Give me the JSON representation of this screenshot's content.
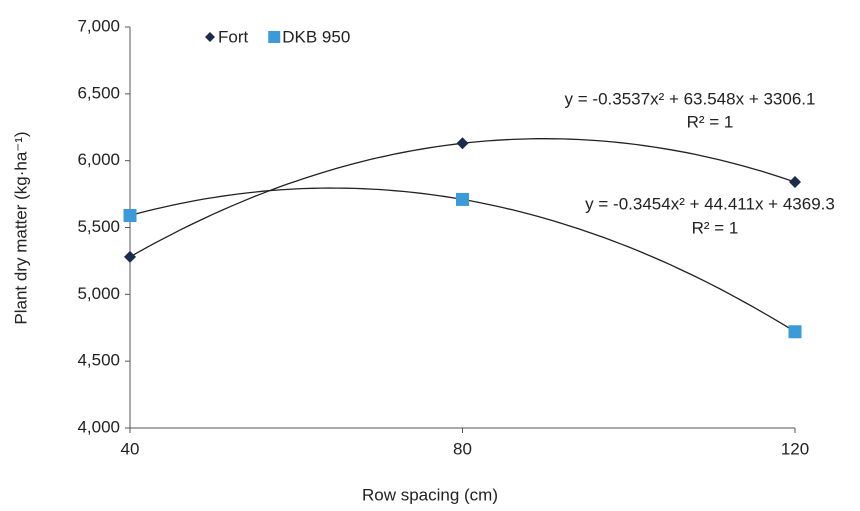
{
  "chart_data": {
    "type": "scatter",
    "x_label": "Row spacing (cm)",
    "y_label": "Plant dry matter (kg·ha⁻¹)",
    "x": [
      40,
      80,
      120
    ],
    "series": [
      {
        "name": "Fort",
        "color": "#1b2b4b",
        "marker": "diamond",
        "values": [
          5280,
          6130,
          5840
        ]
      },
      {
        "name": "DKB 950",
        "color": "#3c9ad8",
        "marker": "square",
        "values": [
          5590,
          5710,
          4720
        ]
      }
    ],
    "annotations": [
      {
        "equation": "y = -0.3537x² + 63.548x + 3306.1",
        "r2": "R² = 1"
      },
      {
        "equation": "y = -0.3454x² + 44.411x + 4369.3",
        "r2": "R² = 1"
      }
    ],
    "xlim": [
      40,
      120
    ],
    "xticks": [
      40,
      80,
      120
    ],
    "ylim": [
      4000,
      7000
    ],
    "yticks": [
      {
        "value": 4000,
        "label": "4,000"
      },
      {
        "value": 4500,
        "label": "4,500"
      },
      {
        "value": 5000,
        "label": "5,000"
      },
      {
        "value": 5500,
        "label": "5,500"
      },
      {
        "value": 6000,
        "label": "6,000"
      },
      {
        "value": 6500,
        "label": "6,500"
      },
      {
        "value": 7000,
        "label": "7,000"
      }
    ],
    "grid": false,
    "legend": "top-left"
  }
}
